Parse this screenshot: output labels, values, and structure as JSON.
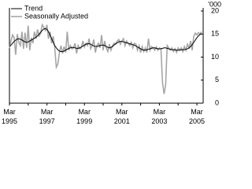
{
  "chart_data": {
    "type": "line",
    "y_label": "'000",
    "categories": [
      "Mar 1995",
      null,
      null,
      null,
      null,
      null,
      null,
      null,
      null,
      null,
      null,
      null,
      null,
      null,
      null,
      null,
      null,
      null,
      null,
      null,
      null,
      null,
      null,
      null,
      "Mar 1997",
      null,
      null,
      null,
      null,
      null,
      null,
      null,
      null,
      null,
      null,
      null,
      null,
      null,
      null,
      null,
      null,
      null,
      null,
      null,
      null,
      null,
      null,
      null,
      "Mar 1999",
      null,
      null,
      null,
      null,
      null,
      null,
      null,
      null,
      null,
      null,
      null,
      null,
      null,
      null,
      null,
      null,
      null,
      null,
      null,
      null,
      null,
      null,
      null,
      "Mar 2001",
      null,
      null,
      null,
      null,
      null,
      null,
      null,
      null,
      null,
      null,
      null,
      null,
      null,
      null,
      null,
      null,
      null,
      null,
      null,
      null,
      null,
      null,
      null,
      "Mar 2003",
      null,
      null,
      null,
      null,
      null,
      null,
      null,
      null,
      null,
      null,
      null,
      null,
      null,
      null,
      null,
      null,
      null,
      null,
      null,
      null,
      null,
      null,
      null,
      "Mar 2005",
      null,
      null,
      null
    ],
    "series": [
      {
        "name": "Trend",
        "color": "#000000",
        "values": [
          12.3,
          12.6,
          13.0,
          13.4,
          13.7,
          13.9,
          14.0,
          13.9,
          13.7,
          13.5,
          13.3,
          13.2,
          13.3,
          13.5,
          13.7,
          13.9,
          14.1,
          14.3,
          14.6,
          15.0,
          15.4,
          15.8,
          16.1,
          16.2,
          16.0,
          15.5,
          14.8,
          14.0,
          13.2,
          12.5,
          12.0,
          11.6,
          11.3,
          11.2,
          11.2,
          11.3,
          11.5,
          11.7,
          11.9,
          12.0,
          12.1,
          12.1,
          12.0,
          11.9,
          11.9,
          12.0,
          12.2,
          12.4,
          12.6,
          12.8,
          12.9,
          12.9,
          12.8,
          12.6,
          12.4,
          12.3,
          12.3,
          12.4,
          12.5,
          12.6,
          12.6,
          12.5,
          12.3,
          12.1,
          12.0,
          12.1,
          12.3,
          12.6,
          12.9,
          13.1,
          13.3,
          13.4,
          13.4,
          13.3,
          13.2,
          13.1,
          13.0,
          12.9,
          12.8,
          12.7,
          12.6,
          12.4,
          12.2,
          12.0,
          11.8,
          11.6,
          11.5,
          11.5,
          11.6,
          11.7,
          11.8,
          11.9,
          12.0,
          12.0,
          11.9,
          11.8,
          11.8,
          11.8,
          11.9,
          12.0,
          12.0,
          11.9,
          11.8,
          11.7,
          11.6,
          11.6,
          11.6,
          11.5,
          11.5,
          11.5,
          11.6,
          11.6,
          11.6,
          11.7,
          11.8,
          12.0,
          12.3,
          12.7,
          13.2,
          13.7,
          14.2,
          14.6,
          14.9,
          15.1
        ]
      },
      {
        "name": "Seasonally Adjusted",
        "color": "#a6a6a6",
        "values": [
          12.0,
          13.5,
          14.8,
          14.2,
          10.5,
          15.0,
          13.2,
          12.5,
          15.5,
          11.8,
          15.3,
          12.0,
          16.8,
          11.5,
          14.2,
          13.0,
          15.5,
          14.0,
          16.0,
          14.6,
          15.2,
          17.0,
          16.5,
          15.8,
          17.0,
          14.0,
          15.5,
          13.0,
          14.5,
          12.0,
          7.8,
          8.5,
          11.0,
          12.5,
          10.8,
          12.3,
          11.0,
          15.5,
          11.5,
          12.5,
          11.8,
          12.0,
          13.0,
          10.8,
          12.5,
          11.8,
          12.0,
          13.5,
          12.2,
          13.0,
          12.5,
          14.0,
          11.8,
          12.5,
          13.8,
          11.0,
          12.5,
          13.0,
          12.0,
          14.8,
          11.5,
          13.5,
          12.0,
          11.2,
          12.8,
          11.5,
          12.5,
          13.0,
          12.8,
          13.5,
          13.8,
          12.8,
          13.5,
          14.0,
          12.5,
          13.5,
          13.0,
          12.5,
          13.2,
          12.0,
          13.0,
          12.8,
          11.5,
          12.5,
          11.0,
          12.3,
          11.2,
          12.0,
          11.0,
          14.0,
          11.5,
          12.3,
          12.0,
          11.5,
          12.2,
          11.5,
          12.0,
          11.8,
          4.5,
          2.0,
          4.0,
          12.5,
          12.0,
          11.5,
          12.0,
          11.2,
          11.8,
          11.0,
          12.0,
          11.5,
          12.0,
          11.2,
          12.3,
          11.5,
          12.8,
          12.0,
          13.5,
          11.5,
          14.5,
          15.2,
          14.8,
          15.3,
          15.0,
          15.5
        ]
      }
    ],
    "ylim": [
      0,
      20
    ],
    "yticks": [
      0,
      5,
      10,
      15,
      20
    ],
    "legend": "top-left"
  }
}
